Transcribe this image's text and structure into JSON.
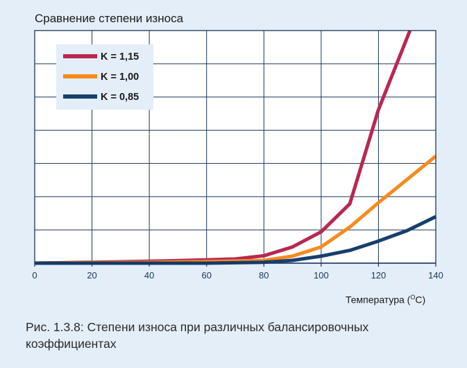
{
  "chart_data": {
    "type": "line",
    "title": "Сравнение степени износа",
    "xlabel": "Температура (°C)",
    "xlabel_parts": {
      "pre": "Температура (",
      "sup": "O",
      "post": "C)"
    },
    "ylabel": "",
    "xlim": [
      0,
      140
    ],
    "ylim": [
      0,
      100
    ],
    "x_ticks": [
      0,
      20,
      40,
      60,
      80,
      100,
      120,
      140
    ],
    "grid": true,
    "legend_position": "top-left",
    "series": [
      {
        "name": "K = 1,15",
        "color": "#b82850",
        "x": [
          0,
          20,
          40,
          60,
          70,
          80,
          90,
          100,
          110,
          120,
          131
        ],
        "y": [
          0,
          0.4,
          0.8,
          1.4,
          1.8,
          3.2,
          7,
          13.5,
          25.5,
          66,
          100
        ]
      },
      {
        "name": "K = 1,00",
        "color": "#f68a1e",
        "x": [
          0,
          20,
          40,
          60,
          80,
          90,
          100,
          110,
          120,
          130,
          140
        ],
        "y": [
          0,
          0.2,
          0.4,
          0.7,
          1.2,
          3,
          7,
          15.5,
          26,
          36,
          46
        ]
      },
      {
        "name": "K = 0,85",
        "color": "#173f6e",
        "x": [
          0,
          20,
          40,
          60,
          80,
          90,
          100,
          110,
          120,
          130,
          140
        ],
        "y": [
          0,
          0,
          0,
          0,
          0.4,
          1.2,
          3,
          5.5,
          9.5,
          14,
          20
        ]
      }
    ]
  },
  "caption": "Рис. 1.3.8: Степени износа при различных балансировочных коэффициентах"
}
